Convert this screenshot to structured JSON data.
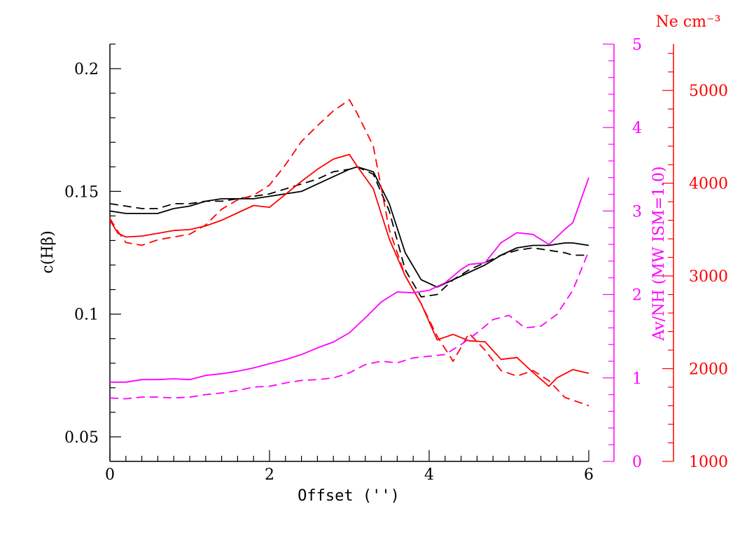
{
  "colors": {
    "black": "#000000",
    "red": "#ff0000",
    "magenta": "#ff00ff"
  },
  "chart_data": {
    "type": "line",
    "xlabel": "Offset ('')",
    "ylabel": "c(Hβ)",
    "y2label": "Av/NH (MW ISM=1.0)",
    "y3label": "Ne cm⁻³",
    "xlim": [
      0,
      6
    ],
    "ylim": [
      0.04,
      0.21
    ],
    "y2lim": [
      0,
      5
    ],
    "y3lim": [
      1000,
      5500
    ],
    "xticks": [
      "0",
      "2",
      "4",
      "6"
    ],
    "yticks": [
      "0.05",
      "0.1",
      "0.15",
      "0.2"
    ],
    "y2ticks": [
      "0",
      "1",
      "2",
      "3",
      "4",
      "5"
    ],
    "y3ticks": [
      "1000",
      "2000",
      "3000",
      "4000",
      "5000"
    ],
    "series": [
      {
        "color": "black",
        "dash": "solid",
        "axis": "left",
        "x": [
          0,
          0.2,
          0.4,
          0.6,
          0.8,
          1.0,
          1.2,
          1.4,
          1.6,
          1.8,
          2.0,
          2.2,
          2.4,
          2.6,
          2.8,
          3.0,
          3.1,
          3.3,
          3.5,
          3.7,
          3.9,
          4.1,
          4.3,
          4.5,
          4.7,
          4.9,
          5.1,
          5.3,
          5.5,
          5.7,
          5.8,
          6.0
        ],
        "y": [
          0.142,
          0.141,
          0.141,
          0.141,
          0.143,
          0.144,
          0.146,
          0.147,
          0.147,
          0.147,
          0.148,
          0.149,
          0.15,
          0.153,
          0.156,
          0.159,
          0.16,
          0.158,
          0.145,
          0.125,
          0.114,
          0.111,
          0.114,
          0.117,
          0.12,
          0.124,
          0.127,
          0.128,
          0.128,
          0.129,
          0.129,
          0.128
        ]
      },
      {
        "color": "black",
        "dash": "dashed",
        "axis": "left",
        "x": [
          0,
          0.2,
          0.4,
          0.6,
          0.8,
          1.0,
          1.2,
          1.4,
          1.6,
          1.8,
          2.0,
          2.2,
          2.4,
          2.6,
          2.8,
          3.0,
          3.1,
          3.3,
          3.5,
          3.7,
          3.9,
          4.1,
          4.3,
          4.5,
          4.7,
          4.9,
          5.1,
          5.3,
          5.5,
          5.7,
          5.8,
          6.0
        ],
        "y": [
          0.145,
          0.144,
          0.143,
          0.143,
          0.145,
          0.145,
          0.146,
          0.146,
          0.147,
          0.148,
          0.149,
          0.151,
          0.153,
          0.155,
          0.158,
          0.159,
          0.16,
          0.157,
          0.142,
          0.118,
          0.107,
          0.108,
          0.114,
          0.118,
          0.121,
          0.124,
          0.126,
          0.127,
          0.126,
          0.125,
          0.124,
          0.124
        ]
      },
      {
        "color": "red",
        "dash": "solid",
        "axis": "right-ne",
        "x": [
          0,
          0.1,
          0.2,
          0.4,
          0.6,
          0.8,
          1.0,
          1.2,
          1.4,
          1.6,
          1.8,
          2.0,
          2.2,
          2.4,
          2.6,
          2.8,
          3.0,
          3.1,
          3.3,
          3.5,
          3.7,
          3.9,
          4.1,
          4.3,
          4.5,
          4.7,
          4.9,
          5.1,
          5.3,
          5.5,
          5.6,
          5.8,
          6.0
        ],
        "y": [
          3600,
          3460,
          3420,
          3430,
          3460,
          3490,
          3500,
          3540,
          3600,
          3680,
          3760,
          3740,
          3880,
          4020,
          4150,
          4260,
          4310,
          4180,
          3940,
          3400,
          3000,
          2700,
          2310,
          2370,
          2300,
          2290,
          2100,
          2120,
          1960,
          1810,
          1900,
          1990,
          1950
        ]
      },
      {
        "color": "red",
        "dash": "dashed",
        "axis": "right-ne",
        "x": [
          0,
          0.1,
          0.2,
          0.4,
          0.6,
          0.8,
          1.0,
          1.2,
          1.4,
          1.6,
          1.8,
          2.0,
          2.2,
          2.4,
          2.6,
          2.8,
          3.0,
          3.1,
          3.3,
          3.5,
          3.7,
          3.9,
          4.1,
          4.3,
          4.5,
          4.7,
          4.9,
          5.1,
          5.3,
          5.5,
          5.7,
          6.0
        ],
        "y": [
          3620,
          3480,
          3360,
          3330,
          3390,
          3420,
          3450,
          3550,
          3720,
          3820,
          3870,
          3980,
          4200,
          4450,
          4620,
          4780,
          4900,
          4750,
          4400,
          3500,
          3000,
          2700,
          2350,
          2080,
          2380,
          2200,
          1980,
          1920,
          1980,
          1870,
          1690,
          1600
        ]
      },
      {
        "color": "magenta",
        "dash": "solid",
        "axis": "right-av",
        "x": [
          0,
          0.2,
          0.4,
          0.6,
          0.8,
          1.0,
          1.2,
          1.4,
          1.6,
          1.8,
          2.0,
          2.2,
          2.4,
          2.6,
          2.8,
          3.0,
          3.2,
          3.4,
          3.6,
          3.8,
          4.0,
          4.2,
          4.4,
          4.5,
          4.7,
          4.9,
          5.1,
          5.3,
          5.5,
          5.7,
          5.8,
          6.0
        ],
        "y": [
          0.95,
          0.95,
          0.98,
          0.98,
          0.99,
          0.98,
          1.03,
          1.05,
          1.08,
          1.12,
          1.17,
          1.22,
          1.28,
          1.36,
          1.43,
          1.54,
          1.72,
          1.91,
          2.03,
          2.02,
          2.05,
          2.14,
          2.3,
          2.36,
          2.38,
          2.62,
          2.74,
          2.72,
          2.6,
          2.78,
          2.86,
          3.4
        ]
      },
      {
        "color": "magenta",
        "dash": "dashed",
        "axis": "right-av",
        "x": [
          0,
          0.2,
          0.4,
          0.6,
          0.8,
          1.0,
          1.2,
          1.4,
          1.6,
          1.8,
          2.0,
          2.2,
          2.4,
          2.6,
          2.8,
          3.0,
          3.2,
          3.4,
          3.6,
          3.8,
          4.0,
          4.2,
          4.4,
          4.6,
          4.8,
          5.0,
          5.2,
          5.4,
          5.6,
          5.8,
          6.0
        ],
        "y": [
          0.76,
          0.75,
          0.77,
          0.77,
          0.76,
          0.77,
          0.8,
          0.82,
          0.85,
          0.89,
          0.9,
          0.94,
          0.97,
          0.98,
          1.0,
          1.06,
          1.16,
          1.2,
          1.18,
          1.24,
          1.26,
          1.28,
          1.4,
          1.54,
          1.7,
          1.75,
          1.6,
          1.62,
          1.76,
          2.05,
          2.52
        ]
      }
    ]
  }
}
